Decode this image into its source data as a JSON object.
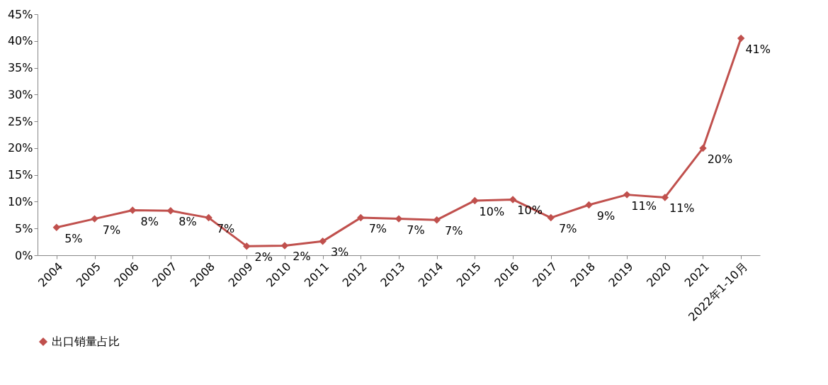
{
  "chart_data": {
    "type": "line",
    "categories": [
      "2004",
      "2005",
      "2006",
      "2007",
      "2008",
      "2009",
      "2010",
      "2011",
      "2012",
      "2013",
      "2014",
      "2015",
      "2016",
      "2017",
      "2018",
      "2019",
      "2020",
      "2021",
      "2022年1-10月"
    ],
    "series": [
      {
        "name": "出口销量占比",
        "color": "#c0504d",
        "values": [
          5.2,
          6.8,
          8.4,
          8.3,
          7.0,
          1.7,
          1.8,
          2.6,
          7.0,
          6.8,
          6.6,
          10.2,
          10.4,
          7.0,
          9.4,
          11.3,
          10.8,
          20.0,
          40.5
        ],
        "value_labels": [
          "5%",
          "7%",
          "8%",
          "8%",
          "7%",
          "2%",
          "2%",
          "3%",
          "7%",
          "7%",
          "7%",
          "10%",
          "10%",
          "7%",
          "9%",
          "11%",
          "11%",
          "20%",
          "41%"
        ]
      }
    ],
    "ylim": [
      0,
      45
    ],
    "yticks": [
      {
        "value": 0,
        "label": "0%"
      },
      {
        "value": 5,
        "label": "5%"
      },
      {
        "value": 10,
        "label": "10%"
      },
      {
        "value": 15,
        "label": "15%"
      },
      {
        "value": 20,
        "label": "20%"
      },
      {
        "value": 25,
        "label": "25%"
      },
      {
        "value": 30,
        "label": "30%"
      },
      {
        "value": 35,
        "label": "35%"
      },
      {
        "value": 40,
        "label": "40%"
      },
      {
        "value": 45,
        "label": "45%"
      }
    ],
    "grid": false,
    "legend": "bottom",
    "marker": "diamond",
    "line_style": "solid"
  }
}
